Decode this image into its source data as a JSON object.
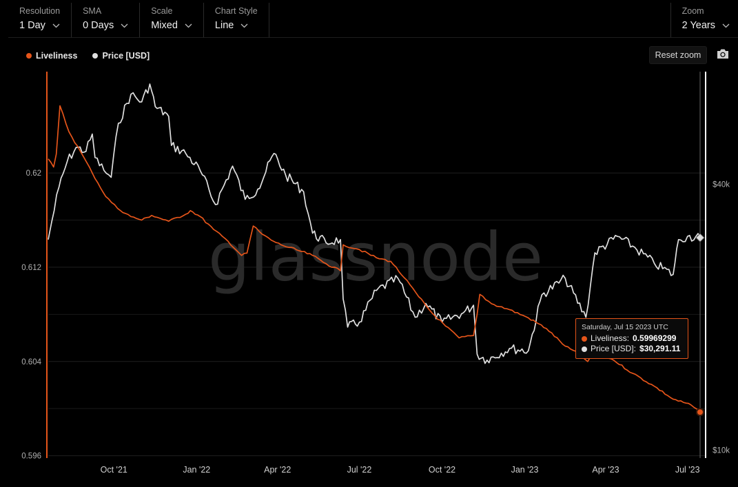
{
  "toolbar": {
    "resolution": {
      "label": "Resolution",
      "value": "1 Day"
    },
    "sma": {
      "label": "SMA",
      "value": "0 Days"
    },
    "scale": {
      "label": "Scale",
      "value": "Mixed"
    },
    "chart_style": {
      "label": "Chart Style",
      "value": "Line"
    },
    "zoom": {
      "label": "Zoom",
      "value": "2 Years"
    }
  },
  "reset_zoom_label": "Reset zoom",
  "watermark": "glassnode",
  "colors": {
    "liveliness": "#e6551a",
    "price": "#e0e0e0",
    "background": "#000000"
  },
  "tooltip": {
    "date": "Saturday, Jul 15 2023 UTC",
    "liveliness_label": "Liveliness:",
    "liveliness_value": "0.59969299",
    "price_label": "Price [USD]:",
    "price_value": "$30,291.11"
  },
  "chart_data": {
    "type": "line",
    "title": "",
    "legend": {
      "position": "top-left",
      "entries": [
        "Liveliness",
        "Price [USD]"
      ]
    },
    "x_ticks": [
      "Oct '21",
      "Jan '22",
      "Apr '22",
      "Jul '22",
      "Oct '22",
      "Jan '23",
      "Apr '23",
      "Jul '23"
    ],
    "x_range": [
      "2021-07-20",
      "2023-07-15"
    ],
    "y_left": {
      "ticks": [
        "0.62",
        "0.612",
        "0.604",
        "0.596"
      ],
      "tick_values": [
        0.62,
        0.612,
        0.604,
        0.596
      ],
      "range": [
        0.5958,
        0.6286
      ]
    },
    "y_right": {
      "ticks": [
        "$40k",
        "$10k"
      ],
      "tick_values": [
        40000,
        10000
      ],
      "scale": "log",
      "range": [
        9600,
        72000
      ]
    },
    "series": [
      {
        "name": "Liveliness",
        "axis": "left",
        "points": [
          [
            "2021-07-20",
            0.6212
          ],
          [
            "2021-07-26",
            0.6205
          ],
          [
            "2021-07-29",
            0.6216
          ],
          [
            "2021-08-02",
            0.6257
          ],
          [
            "2021-08-12",
            0.6235
          ],
          [
            "2021-08-25",
            0.6218
          ],
          [
            "2021-09-07",
            0.62
          ],
          [
            "2021-09-22",
            0.618
          ],
          [
            "2021-10-05",
            0.617
          ],
          [
            "2021-10-20",
            0.6163
          ],
          [
            "2021-11-01",
            0.616
          ],
          [
            "2021-11-12",
            0.6164
          ],
          [
            "2021-12-01",
            0.6159
          ],
          [
            "2021-12-20",
            0.6165
          ],
          [
            "2021-12-25",
            0.6168
          ],
          [
            "2022-01-05",
            0.6163
          ],
          [
            "2022-01-20",
            0.6152
          ],
          [
            "2022-02-05",
            0.6142
          ],
          [
            "2022-02-20",
            0.613
          ],
          [
            "2022-02-26",
            0.6132
          ],
          [
            "2022-03-05",
            0.6155
          ],
          [
            "2022-03-15",
            0.6148
          ],
          [
            "2022-03-25",
            0.6143
          ],
          [
            "2022-04-05",
            0.6139
          ],
          [
            "2022-04-25",
            0.6134
          ],
          [
            "2022-05-10",
            0.613
          ],
          [
            "2022-05-25",
            0.6123
          ],
          [
            "2022-06-10",
            0.6117
          ],
          [
            "2022-06-13",
            0.6139
          ],
          [
            "2022-07-01",
            0.6135
          ],
          [
            "2022-07-20",
            0.6128
          ],
          [
            "2022-08-05",
            0.6125
          ],
          [
            "2022-08-20",
            0.6111
          ],
          [
            "2022-09-05",
            0.6095
          ],
          [
            "2022-09-20",
            0.6081
          ],
          [
            "2022-10-05",
            0.607
          ],
          [
            "2022-10-20",
            0.606
          ],
          [
            "2022-11-05",
            0.6062
          ],
          [
            "2022-11-09",
            0.608
          ],
          [
            "2022-11-12",
            0.6097
          ],
          [
            "2022-11-25",
            0.6089
          ],
          [
            "2022-12-15",
            0.6084
          ],
          [
            "2023-01-05",
            0.6077
          ],
          [
            "2023-01-25",
            0.6068
          ],
          [
            "2023-02-15",
            0.6053
          ],
          [
            "2023-03-05",
            0.6045
          ],
          [
            "2023-03-12",
            0.604
          ],
          [
            "2023-03-20",
            0.6049
          ],
          [
            "2023-04-10",
            0.6041
          ],
          [
            "2023-05-01",
            0.603
          ],
          [
            "2023-05-25",
            0.6019
          ],
          [
            "2023-06-15",
            0.6008
          ],
          [
            "2023-07-05",
            0.6003
          ],
          [
            "2023-07-15",
            0.5997
          ]
        ]
      },
      {
        "name": "Price [USD]",
        "axis": "right",
        "points": [
          [
            "2021-07-20",
            30000
          ],
          [
            "2021-07-24",
            33000
          ],
          [
            "2021-08-01",
            39500
          ],
          [
            "2021-08-10",
            45000
          ],
          [
            "2021-08-20",
            48500
          ],
          [
            "2021-08-31",
            47500
          ],
          [
            "2021-09-07",
            52000
          ],
          [
            "2021-09-10",
            46000
          ],
          [
            "2021-09-20",
            43000
          ],
          [
            "2021-09-28",
            41500
          ],
          [
            "2021-10-06",
            55000
          ],
          [
            "2021-10-20",
            64000
          ],
          [
            "2021-11-01",
            61500
          ],
          [
            "2021-11-10",
            67500
          ],
          [
            "2021-11-16",
            60000
          ],
          [
            "2021-12-01",
            57000
          ],
          [
            "2021-12-04",
            49000
          ],
          [
            "2021-12-20",
            47000
          ],
          [
            "2022-01-05",
            43000
          ],
          [
            "2022-01-22",
            36000
          ],
          [
            "2022-02-10",
            44000
          ],
          [
            "2022-02-24",
            37000
          ],
          [
            "2022-03-10",
            39000
          ],
          [
            "2022-03-28",
            47000
          ],
          [
            "2022-04-10",
            42000
          ],
          [
            "2022-04-30",
            38500
          ],
          [
            "2022-05-10",
            31000
          ],
          [
            "2022-05-25",
            29500
          ],
          [
            "2022-06-10",
            30000
          ],
          [
            "2022-06-13",
            22000
          ],
          [
            "2022-06-18",
            19000
          ],
          [
            "2022-07-01",
            19500
          ],
          [
            "2022-07-20",
            23000
          ],
          [
            "2022-08-13",
            24500
          ],
          [
            "2022-09-01",
            20000
          ],
          [
            "2022-09-13",
            21500
          ],
          [
            "2022-10-01",
            19500
          ],
          [
            "2022-10-25",
            20500
          ],
          [
            "2022-11-05",
            21300
          ],
          [
            "2022-11-09",
            16500
          ],
          [
            "2022-11-20",
            16000
          ],
          [
            "2022-12-15",
            17000
          ],
          [
            "2023-01-05",
            16800
          ],
          [
            "2023-01-20",
            22500
          ],
          [
            "2023-02-15",
            24500
          ],
          [
            "2023-03-10",
            20000
          ],
          [
            "2023-03-20",
            28000
          ],
          [
            "2023-04-14",
            30500
          ],
          [
            "2023-05-01",
            29000
          ],
          [
            "2023-05-25",
            26500
          ],
          [
            "2023-06-15",
            25000
          ],
          [
            "2023-06-21",
            30000
          ],
          [
            "2023-07-01",
            30500
          ],
          [
            "2023-07-15",
            30291
          ]
        ]
      }
    ]
  }
}
